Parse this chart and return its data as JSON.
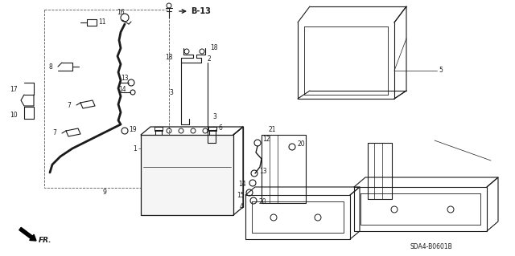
{
  "bg_color": "#ffffff",
  "line_color": "#1a1a1a",
  "diagram_code": "SDA4-B0601B",
  "fig_width": 6.4,
  "fig_height": 3.19,
  "dpi": 100
}
